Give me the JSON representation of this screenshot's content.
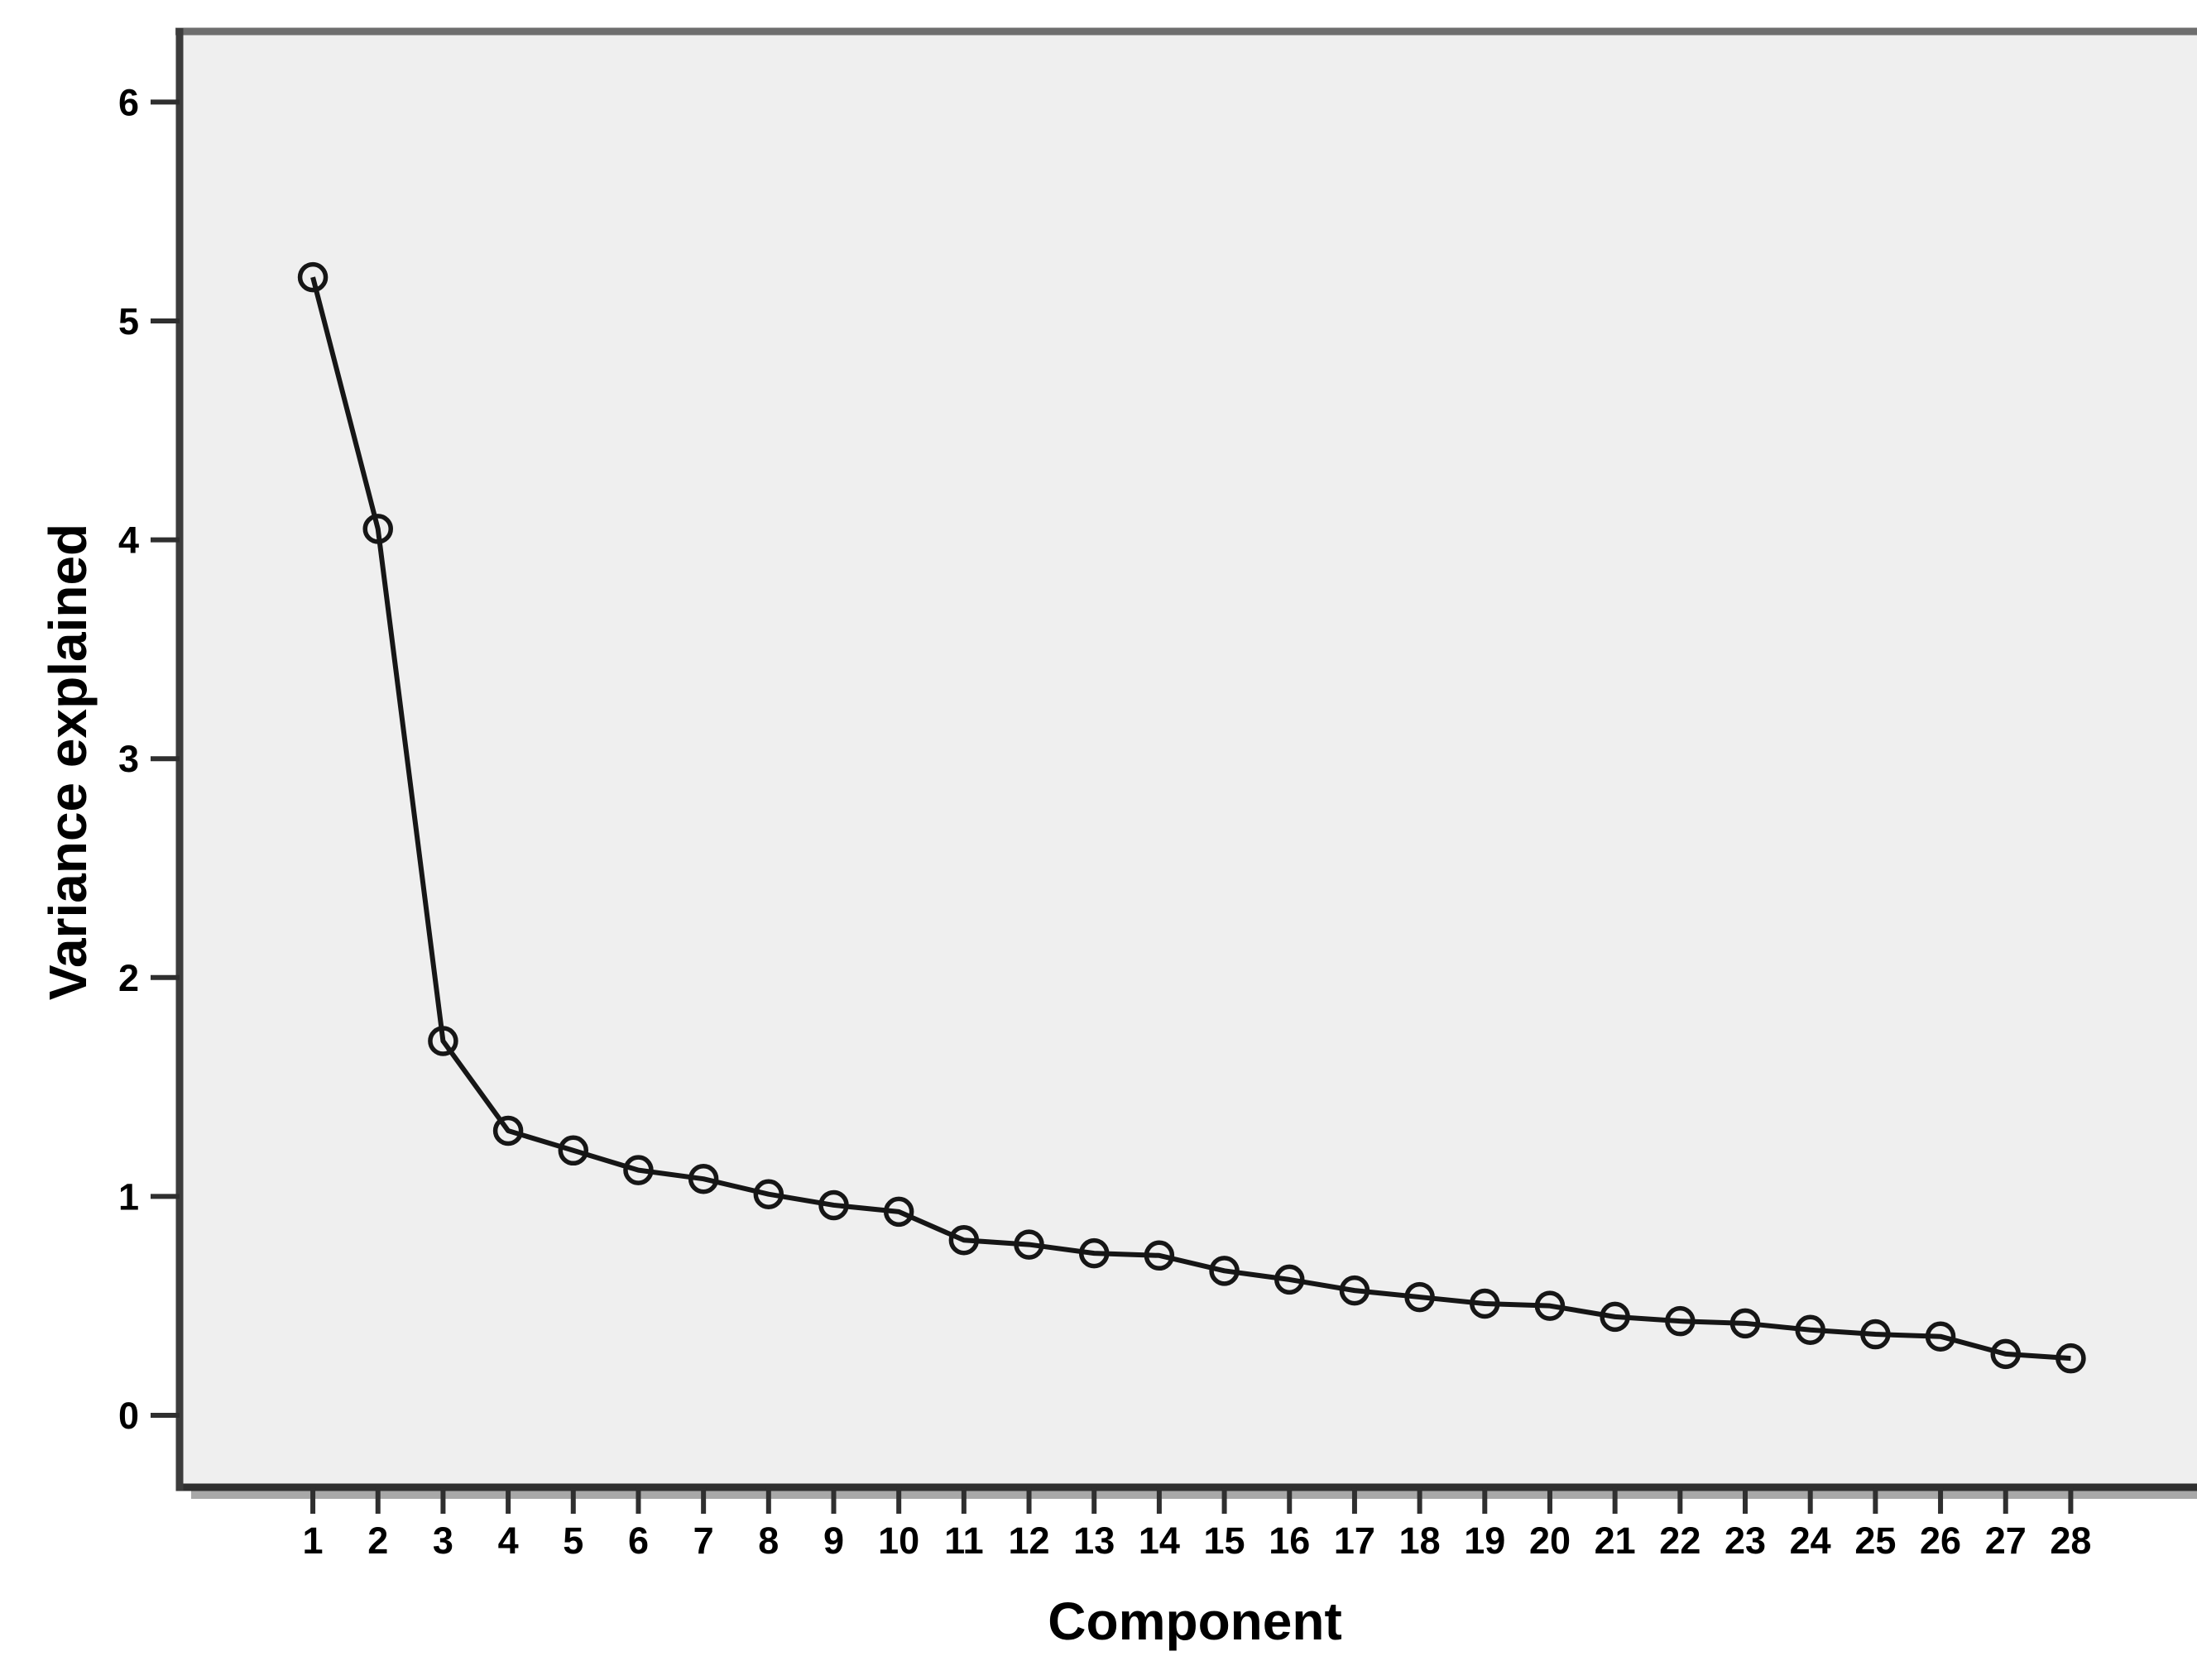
{
  "chart_data": {
    "type": "line",
    "title": "",
    "xlabel": "Component",
    "ylabel": "Variance explained",
    "x": [
      1,
      2,
      3,
      4,
      5,
      6,
      7,
      8,
      9,
      10,
      11,
      12,
      13,
      14,
      15,
      16,
      17,
      18,
      19,
      20,
      21,
      22,
      23,
      24,
      25,
      26,
      27,
      28
    ],
    "series": [
      {
        "name": "Variance explained",
        "values": [
          5.2,
          4.05,
          1.71,
          1.3,
          1.21,
          1.12,
          1.08,
          1.01,
          0.96,
          0.93,
          0.8,
          0.78,
          0.74,
          0.73,
          0.66,
          0.62,
          0.57,
          0.54,
          0.51,
          0.5,
          0.45,
          0.43,
          0.42,
          0.39,
          0.37,
          0.36,
          0.28,
          0.26
        ]
      }
    ],
    "x_tick_labels": [
      "1",
      "2",
      "3",
      "4",
      "5",
      "6",
      "7",
      "8",
      "9",
      "10",
      "11",
      "12",
      "13",
      "14",
      "15",
      "16",
      "17",
      "18",
      "19",
      "20",
      "21",
      "22",
      "23",
      "24",
      "25",
      "26",
      "27",
      "28"
    ],
    "y_ticks": [
      0,
      1,
      2,
      3,
      4,
      5,
      6
    ],
    "xlim": [
      -1.047,
      30.13
    ],
    "ylim": [
      -0.329,
      6.338
    ],
    "grid": false,
    "legend": "none",
    "marker": "open-circle",
    "colors": {
      "plot_background": "#efefef",
      "outer_background": "#ffffff",
      "frame": "#2f2f2f",
      "frame_top": "#6e6e6e",
      "frame_left": "#3c3c3c",
      "frame_shadow": "#a8a8a8",
      "line": "#161616",
      "marker_stroke": "#161616",
      "tick": "#2f2f2f",
      "text": "#000000"
    }
  }
}
